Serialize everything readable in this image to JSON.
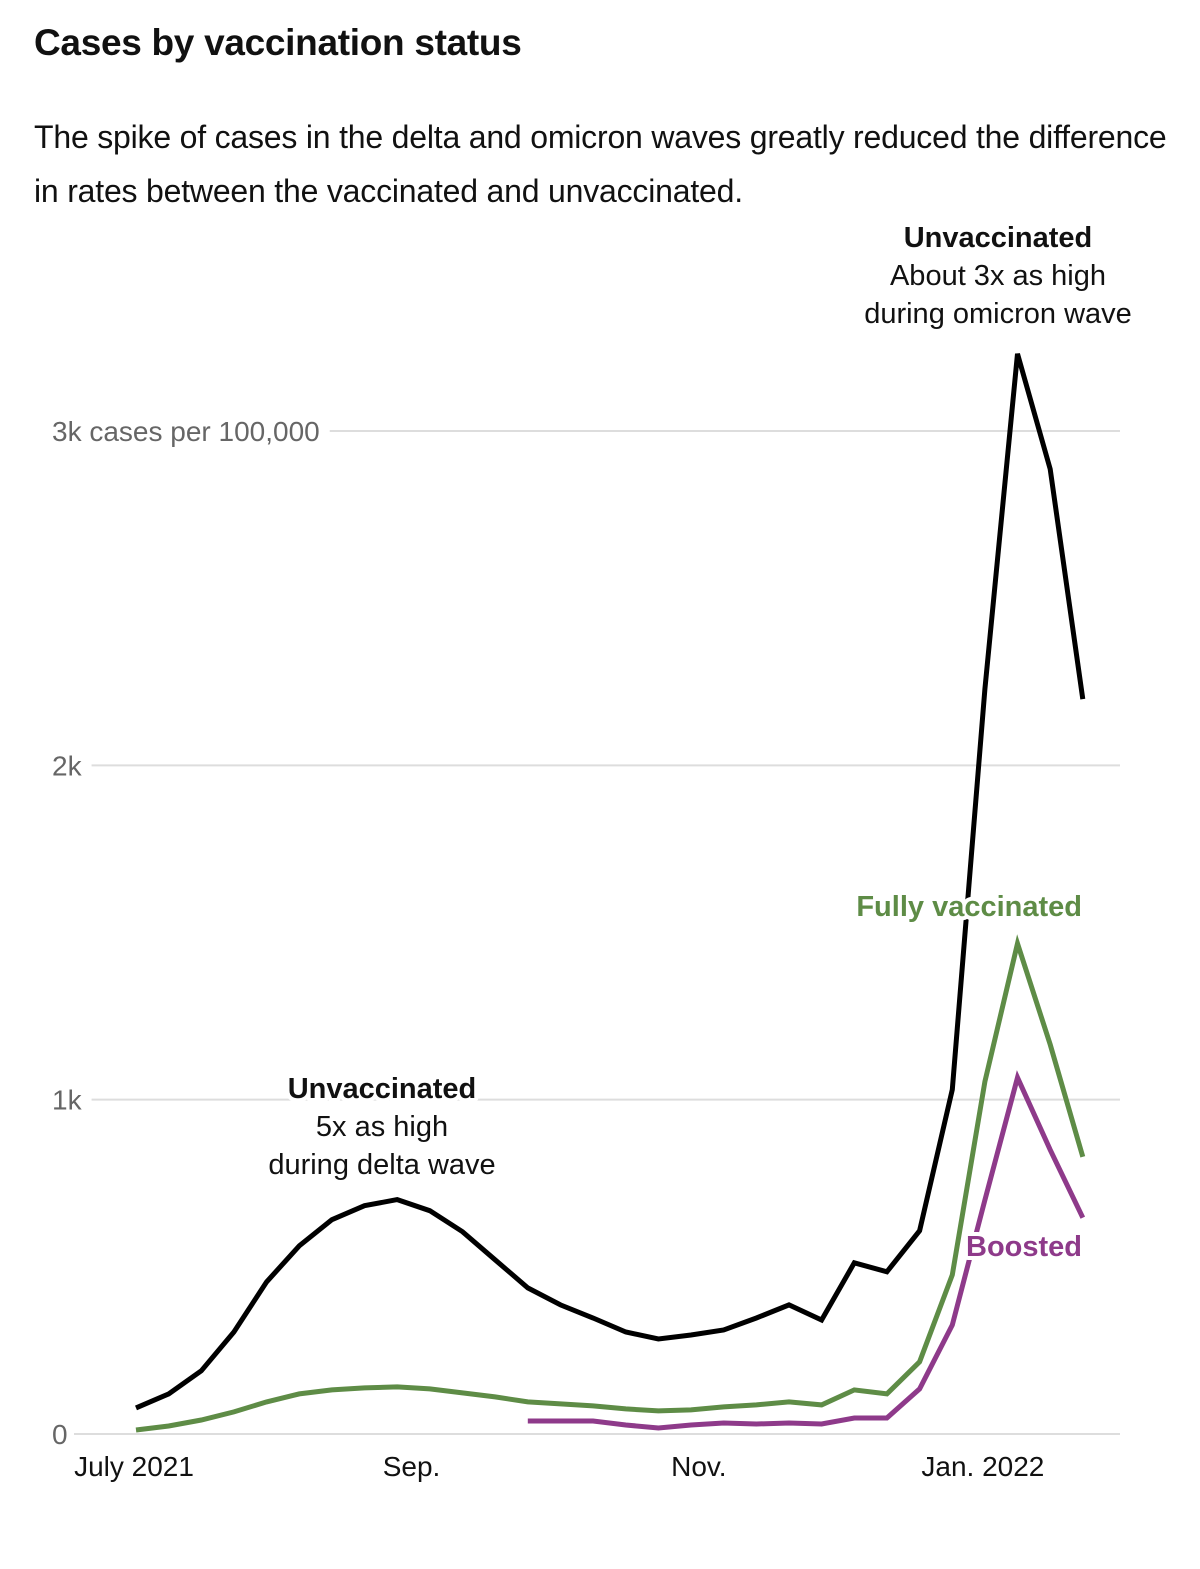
{
  "header": {
    "title": "Cases by vaccination status",
    "subtitle": "The spike of cases in the delta and omicron waves greatly reduced the difference in rates between the vaccinated and unvaccinated."
  },
  "chart_data": {
    "type": "line",
    "title": "Cases by vaccination status",
    "subtitle": "The spike of cases in the delta and omicron waves greatly reduced the difference in rates between the vaccinated and unvaccinated.",
    "xlabel": "",
    "ylabel": "cases per 100,000",
    "x_unit": "week",
    "x_count": 30,
    "x_tick_labels": [
      {
        "index": 0,
        "label": "July 2021"
      },
      {
        "index": 8.5,
        "label": "Sep."
      },
      {
        "index": 17.3,
        "label": "Nov."
      },
      {
        "index": 26,
        "label": "Jan. 2022"
      }
    ],
    "y_ticks": [
      {
        "value": 0,
        "label": "0"
      },
      {
        "value": 1000,
        "label": "1k"
      },
      {
        "value": 2000,
        "label": "2k"
      },
      {
        "value": 3000,
        "label": "3k cases per 100,000"
      }
    ],
    "ylim": [
      0,
      3000
    ],
    "grid": true,
    "series": [
      {
        "name": "Unvaccinated",
        "color": "#000000",
        "start_index": 0,
        "values": [
          78,
          120,
          189,
          305,
          455,
          563,
          641,
          683,
          701,
          668,
          605,
          521,
          437,
          386,
          347,
          305,
          284,
          296,
          311,
          347,
          386,
          341,
          512,
          485,
          608,
          1030,
          2228,
          3231,
          2886,
          2198
        ]
      },
      {
        "name": "Fully vaccinated",
        "color": "#5e8c46",
        "start_index": 0,
        "values": [
          12,
          24,
          42,
          66,
          96,
          120,
          132,
          138,
          141,
          135,
          123,
          111,
          96,
          90,
          84,
          75,
          69,
          72,
          81,
          87,
          96,
          87,
          132,
          120,
          216,
          476,
          1054,
          1467,
          1165,
          829
        ]
      },
      {
        "name": "Boosted",
        "color": "#8e3a8a",
        "start_index": 12,
        "values": [
          39,
          39,
          39,
          27,
          18,
          27,
          33,
          30,
          33,
          30,
          48,
          48,
          135,
          326,
          700,
          1066,
          850,
          647
        ]
      }
    ],
    "annotations": [
      {
        "id": "omicron",
        "title": "Unvaccinated",
        "lines": [
          "About 3x as high",
          "during omicron wave"
        ],
        "anchor_index": 27
      },
      {
        "id": "delta",
        "title": "Unvaccinated",
        "lines": [
          "5x as high",
          "during delta wave"
        ],
        "anchor_index": 7.5
      }
    ],
    "series_labels": [
      {
        "series": "Fully vaccinated",
        "text": "Fully vaccinated"
      },
      {
        "series": "Boosted",
        "text": "Boosted"
      }
    ]
  }
}
